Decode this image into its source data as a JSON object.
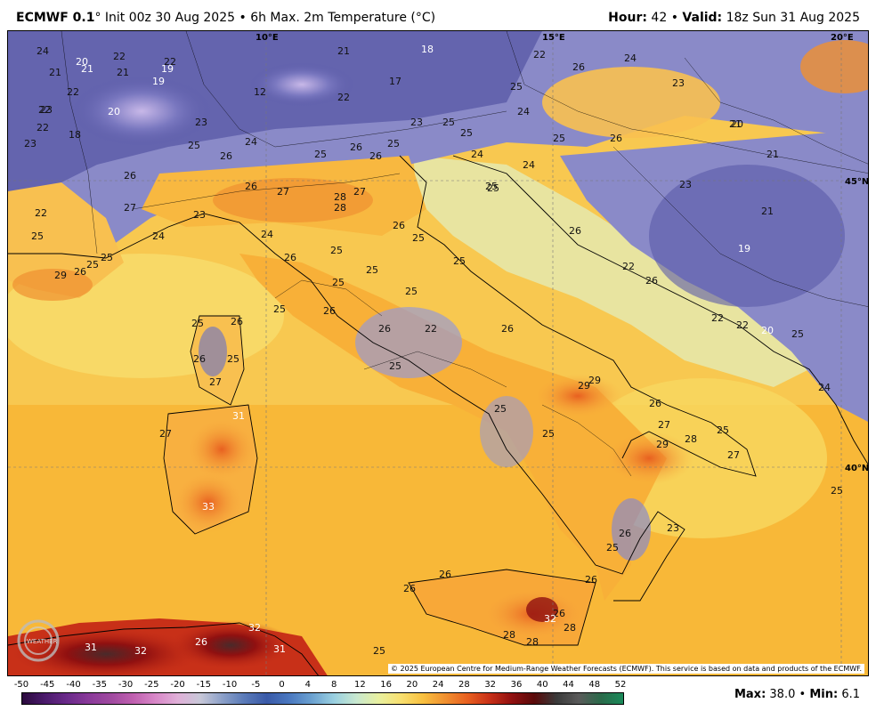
{
  "header": {
    "model": "ECMWF 0.1",
    "degree_mark": "°",
    "init": "Init 00z 30 Aug 2025",
    "separator": "•",
    "product": "6h Max. 2m Temperature (°C)",
    "hour_label": "Hour:",
    "hour": "42",
    "valid_label": "Valid:",
    "valid": "18z Sun 31 Aug 2025"
  },
  "map": {
    "coord_labels": [
      "10°E",
      "15°E",
      "20°E",
      "45°N",
      "40°N"
    ],
    "temperature_labels": [
      "24",
      "22",
      "22",
      "20",
      "21",
      "19",
      "21",
      "21",
      "18",
      "22",
      "26",
      "24",
      "22",
      "19",
      "17",
      "12",
      "21",
      "23",
      "20",
      "22",
      "25",
      "22",
      "23",
      "23",
      "20",
      "18",
      "22",
      "23",
      "25",
      "23",
      "25",
      "25",
      "24",
      "26",
      "26",
      "25",
      "24",
      "21",
      "24",
      "25",
      "28",
      "26",
      "26",
      "25",
      "24",
      "25",
      "26",
      "26",
      "27",
      "28",
      "27",
      "27",
      "23",
      "21",
      "25",
      "21",
      "26",
      "22",
      "26",
      "23",
      "24",
      "24",
      "25",
      "22",
      "19",
      "25",
      "25",
      "26",
      "25",
      "25",
      "29",
      "25",
      "26",
      "25",
      "25",
      "22",
      "25",
      "26",
      "22",
      "26",
      "20",
      "25",
      "25",
      "26",
      "26",
      "22",
      "25",
      "26",
      "25",
      "25",
      "29",
      "29",
      "26",
      "24",
      "27",
      "27",
      "29",
      "28",
      "25",
      "27",
      "31",
      "25",
      "27",
      "25",
      "26",
      "33",
      "26",
      "23",
      "25",
      "26",
      "26",
      "26",
      "26",
      "28",
      "32",
      "28",
      "28",
      "26",
      "32",
      "31",
      "32",
      "31",
      "25",
      "25"
    ],
    "copyright": "© 2025 European Centre for Medium-Range Weather Forecasts (ECMWF). This service is based on data and products of the ECMWF.",
    "logo_text": "WEATHER"
  },
  "colorbar": {
    "ticks": [
      "-50",
      "-45",
      "-40",
      "-35",
      "-30",
      "-25",
      "-20",
      "-15",
      "-10",
      "-5",
      "0",
      "4",
      "8",
      "12",
      "16",
      "20",
      "24",
      "28",
      "32",
      "36",
      "40",
      "44",
      "48",
      "52"
    ],
    "colors": [
      "#2b0a3d",
      "#4a1a6b",
      "#6a2a8a",
      "#8a3a9a",
      "#a04aa0",
      "#c060b0",
      "#d888c8",
      "#e0b0d8",
      "#c8c8d8",
      "#8ca0c8",
      "#5a7ab8",
      "#3a5aa8",
      "#4a78c0",
      "#6aa0d0",
      "#9ad0e0",
      "#c8e8d0",
      "#e8f0a0",
      "#f8e070",
      "#f8c040",
      "#f09030",
      "#e86020",
      "#c83018",
      "#901010",
      "#5a0a0a",
      "#3a3a3a",
      "#5a5a5a",
      "#2a6a4a",
      "#1a8a5a"
    ],
    "max_label": "Max:",
    "max": "38.0",
    "min_label": "Min:",
    "min": "6.1"
  }
}
